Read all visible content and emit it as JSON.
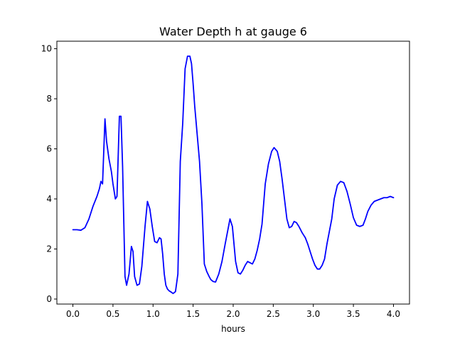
{
  "chart_data": {
    "type": "line",
    "title": "Water Depth h at gauge 6",
    "xlabel": "hours",
    "ylabel": "",
    "xlim": [
      -0.2,
      4.2
    ],
    "ylim": [
      -0.2,
      10.3
    ],
    "xticks": [
      0.0,
      0.5,
      1.0,
      1.5,
      2.0,
      2.5,
      3.0,
      3.5,
      4.0
    ],
    "xtick_labels": [
      "0.0",
      "0.5",
      "1.0",
      "1.5",
      "2.0",
      "2.5",
      "3.0",
      "3.5",
      "4.0"
    ],
    "yticks": [
      0,
      2,
      4,
      6,
      8,
      10
    ],
    "ytick_labels": [
      "0",
      "2",
      "4",
      "6",
      "8",
      "10"
    ],
    "grid": false,
    "series": [
      {
        "name": "",
        "color": "#0000ff",
        "x": [
          0.0,
          0.05,
          0.1,
          0.15,
          0.2,
          0.25,
          0.3,
          0.33,
          0.35,
          0.37,
          0.4,
          0.42,
          0.45,
          0.48,
          0.5,
          0.53,
          0.55,
          0.58,
          0.6,
          0.62,
          0.65,
          0.67,
          0.7,
          0.73,
          0.75,
          0.77,
          0.8,
          0.83,
          0.86,
          0.9,
          0.93,
          0.96,
          0.99,
          1.02,
          1.05,
          1.08,
          1.1,
          1.12,
          1.14,
          1.16,
          1.18,
          1.2,
          1.23,
          1.25,
          1.28,
          1.31,
          1.34,
          1.37,
          1.4,
          1.43,
          1.46,
          1.48,
          1.5,
          1.52,
          1.55,
          1.58,
          1.61,
          1.64,
          1.67,
          1.7,
          1.72,
          1.75,
          1.78,
          1.82,
          1.86,
          1.9,
          1.93,
          1.96,
          1.99,
          2.01,
          2.03,
          2.06,
          2.09,
          2.12,
          2.15,
          2.18,
          2.21,
          2.24,
          2.27,
          2.3,
          2.33,
          2.36,
          2.4,
          2.44,
          2.48,
          2.51,
          2.55,
          2.58,
          2.61,
          2.64,
          2.67,
          2.7,
          2.73,
          2.76,
          2.79,
          2.82,
          2.86,
          2.9,
          2.93,
          2.96,
          2.99,
          3.02,
          3.05,
          3.08,
          3.11,
          3.14,
          3.17,
          3.2,
          3.23,
          3.26,
          3.3,
          3.34,
          3.38,
          3.42,
          3.46,
          3.5,
          3.54,
          3.58,
          3.62,
          3.65,
          3.68,
          3.72,
          3.76,
          3.8,
          3.84,
          3.88,
          3.92,
          3.96,
          4.0
        ],
        "y": [
          2.77,
          2.77,
          2.75,
          2.85,
          3.2,
          3.7,
          4.1,
          4.4,
          4.7,
          4.6,
          7.2,
          6.3,
          5.6,
          5.1,
          4.6,
          4.0,
          4.1,
          7.3,
          7.3,
          5.3,
          0.9,
          0.55,
          1.0,
          2.1,
          1.9,
          0.9,
          0.55,
          0.6,
          1.3,
          2.9,
          3.9,
          3.6,
          2.9,
          2.3,
          2.25,
          2.45,
          2.4,
          1.8,
          1.0,
          0.55,
          0.4,
          0.33,
          0.27,
          0.22,
          0.3,
          1.0,
          5.5,
          7.0,
          9.2,
          9.7,
          9.7,
          9.4,
          8.6,
          7.7,
          6.6,
          5.5,
          3.8,
          1.4,
          1.1,
          0.9,
          0.78,
          0.7,
          0.68,
          1.0,
          1.5,
          2.2,
          2.7,
          3.2,
          2.9,
          2.2,
          1.5,
          1.05,
          1.0,
          1.15,
          1.35,
          1.5,
          1.45,
          1.4,
          1.6,
          1.95,
          2.4,
          3.0,
          4.6,
          5.4,
          5.9,
          6.05,
          5.9,
          5.5,
          4.8,
          4.0,
          3.2,
          2.85,
          2.9,
          3.1,
          3.05,
          2.9,
          2.65,
          2.45,
          2.2,
          1.9,
          1.6,
          1.35,
          1.2,
          1.2,
          1.35,
          1.6,
          2.2,
          2.7,
          3.2,
          4.0,
          4.55,
          4.7,
          4.65,
          4.3,
          3.8,
          3.25,
          2.95,
          2.9,
          2.95,
          3.2,
          3.5,
          3.75,
          3.9,
          3.95,
          4.0,
          4.05,
          4.05,
          4.1,
          4.05
        ]
      }
    ]
  }
}
